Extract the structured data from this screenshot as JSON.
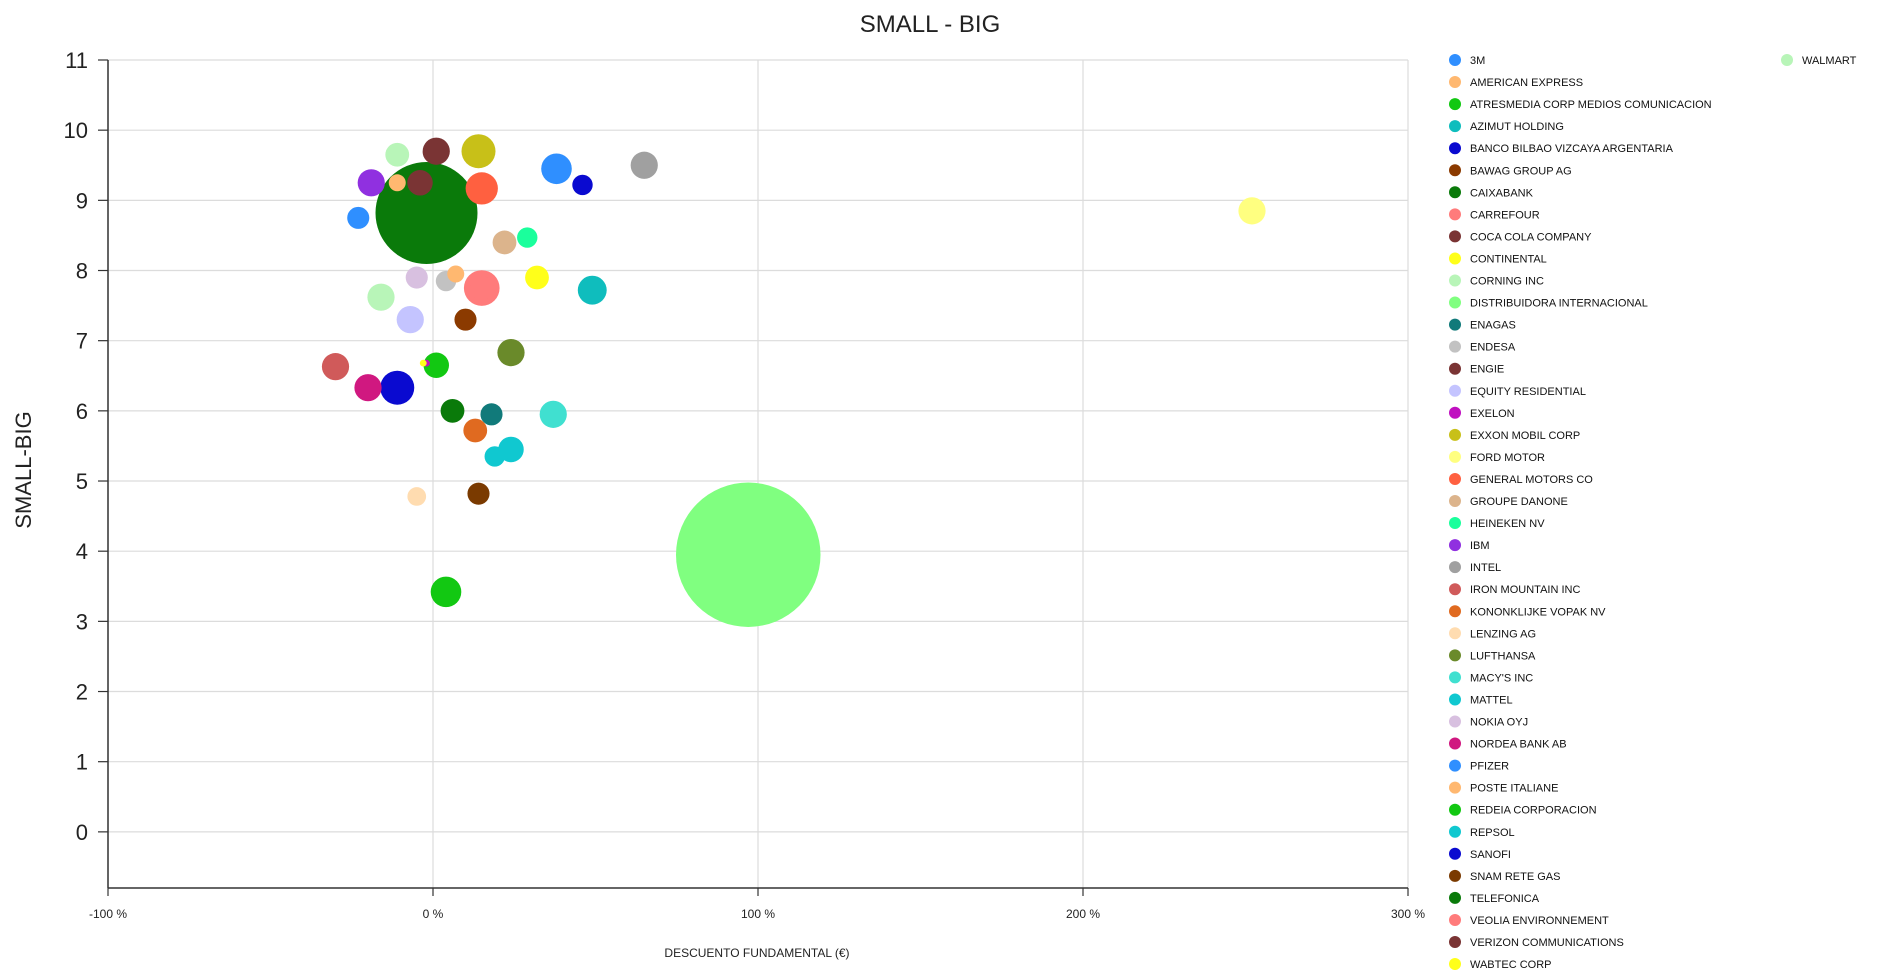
{
  "chart_data": {
    "type": "scatter",
    "subtype": "bubble",
    "title": "SMALL - BIG",
    "xlabel": "DESCUENTO FUNDAMENTAL (€)",
    "ylabel": "SMALL-BIG",
    "xlim": [
      -100,
      300
    ],
    "ylim": [
      -0.8,
      11
    ],
    "x_ticks": [
      -100,
      0,
      100,
      200,
      300
    ],
    "x_tick_labels": [
      "-100 %",
      "0 %",
      "100 %",
      "200 %",
      "300 %"
    ],
    "y_ticks": [
      0,
      1,
      2,
      3,
      4,
      5,
      6,
      7,
      8,
      9,
      10,
      11
    ],
    "y_tick_labels": [
      "0",
      "1",
      "2",
      "3",
      "4",
      "5",
      "6",
      "7",
      "8",
      "9",
      "10",
      "11"
    ],
    "grid": true,
    "legend_position": "right",
    "series": [
      {
        "name": "3M",
        "color": "#2f8fff",
        "x": -23,
        "y": 8.75,
        "size": 1.3
      },
      {
        "name": "AMERICAN EXPRESS",
        "color": "#ffb870",
        "x": -11,
        "y": 9.25,
        "size": 1.0
      },
      {
        "name": "ATRESMEDIA CORP MEDIOS COMUNICACION",
        "color": "#12c812",
        "x": 1,
        "y": 6.65,
        "size": 1.5
      },
      {
        "name": "AZIMUT HOLDING",
        "color": "#0fbdbd",
        "x": 49,
        "y": 7.72,
        "size": 1.7
      },
      {
        "name": "BANCO BILBAO VIZCAYA ARGENTARIA",
        "color": "#0a0ad0",
        "x": 46,
        "y": 9.22,
        "size": 1.2
      },
      {
        "name": "BAWAG GROUP AG",
        "color": "#8b3a00",
        "x": 10,
        "y": 7.3,
        "size": 1.3
      },
      {
        "name": "CAIXABANK",
        "color": "#0a7a0a",
        "x": -2,
        "y": 8.82,
        "size": 6.0
      },
      {
        "name": "CARREFOUR",
        "color": "#ff7b7b",
        "x": 15,
        "y": 7.75,
        "size": 2.1
      },
      {
        "name": "COCA COLA COMPANY",
        "color": "#7a3434",
        "x": 1,
        "y": 9.7,
        "size": 1.6
      },
      {
        "name": "CONTINENTAL",
        "color": "#ffff1a",
        "x": 32,
        "y": 7.9,
        "size": 1.4
      },
      {
        "name": "CORNING INC",
        "color": "#b8f5b8",
        "x": -11,
        "y": 9.65,
        "size": 1.4
      },
      {
        "name": "DISTRIBUIDORA INTERNACIONAL",
        "color": "#80ff80",
        "x": 97,
        "y": 3.95,
        "size": 8.5
      },
      {
        "name": "ENAGAS",
        "color": "#117a7a",
        "x": 18,
        "y": 5.95,
        "size": 1.3
      },
      {
        "name": "ENDESA",
        "color": "#c2c2c2",
        "x": 4,
        "y": 7.85,
        "size": 1.2
      },
      {
        "name": "ENGIE",
        "color": "#7a3434",
        "x": -4,
        "y": 9.25,
        "size": 1.5
      },
      {
        "name": "EQUITY RESIDENTIAL",
        "color": "#c4c4ff",
        "x": -7,
        "y": 7.3,
        "size": 1.6
      },
      {
        "name": "EXELON",
        "color": "#c010c0",
        "x": -2,
        "y": 6.68,
        "size": 0.4
      },
      {
        "name": "EXXON MOBIL CORP",
        "color": "#c8c018",
        "x": 14,
        "y": 9.7,
        "size": 2.0
      },
      {
        "name": "FORD MOTOR",
        "color": "#ffff80",
        "x": 252,
        "y": 8.85,
        "size": 1.6
      },
      {
        "name": "GENERAL MOTORS CO",
        "color": "#ff6040",
        "x": 15,
        "y": 9.17,
        "size": 1.9
      },
      {
        "name": "GROUPE DANONE",
        "color": "#dcb48c",
        "x": 22,
        "y": 8.4,
        "size": 1.4
      },
      {
        "name": "HEINEKEN NV",
        "color": "#1aff9c",
        "x": 29,
        "y": 8.47,
        "size": 1.2
      },
      {
        "name": "IBM",
        "color": "#9030e0",
        "x": -19,
        "y": 9.25,
        "size": 1.6
      },
      {
        "name": "INTEL",
        "color": "#a0a0a0",
        "x": 65,
        "y": 9.5,
        "size": 1.6
      },
      {
        "name": "IRON MOUNTAIN INC",
        "color": "#d05a5a",
        "x": -30,
        "y": 6.63,
        "size": 1.6
      },
      {
        "name": "KONONKLIJKE VOPAK NV",
        "color": "#e06a20",
        "x": 13,
        "y": 5.72,
        "size": 1.4
      },
      {
        "name": "LENZING AG",
        "color": "#ffdcb0",
        "x": -5,
        "y": 4.78,
        "size": 1.1
      },
      {
        "name": "LUFTHANSA",
        "color": "#6a8a2a",
        "x": 24,
        "y": 6.83,
        "size": 1.6
      },
      {
        "name": "MACY'S INC",
        "color": "#40e0d0",
        "x": 37,
        "y": 5.95,
        "size": 1.6
      },
      {
        "name": "MATTEL",
        "color": "#10c8d0",
        "x": 24,
        "y": 5.45,
        "size": 1.5
      },
      {
        "name": "NOKIA OYJ",
        "color": "#d8c0e0",
        "x": -5,
        "y": 7.9,
        "size": 1.3
      },
      {
        "name": "NORDEA BANK AB",
        "color": "#d01880",
        "x": -20,
        "y": 6.33,
        "size": 1.6
      },
      {
        "name": "PFIZER",
        "color": "#2f8fff",
        "x": 38,
        "y": 9.45,
        "size": 1.8
      },
      {
        "name": "POSTE ITALIANE",
        "color": "#ffb870",
        "x": 7,
        "y": 7.95,
        "size": 1.0
      },
      {
        "name": "REDEIA CORPORACION",
        "color": "#12c812",
        "x": 4,
        "y": 3.42,
        "size": 1.8
      },
      {
        "name": "REPSOL",
        "color": "#10c8d0",
        "x": 19,
        "y": 5.35,
        "size": 1.2
      },
      {
        "name": "SANOFI",
        "color": "#0a0ad0",
        "x": -11,
        "y": 6.33,
        "size": 2.0
      },
      {
        "name": "SNAM RETE GAS",
        "color": "#7a3a00",
        "x": 14,
        "y": 4.82,
        "size": 1.3
      },
      {
        "name": "TELEFONICA",
        "color": "#0a7a0a",
        "x": 6,
        "y": 6.0,
        "size": 1.4
      },
      {
        "name": "VEOLIA ENVIRONNEMENT",
        "color": "#ff7b7b",
        "x": 15,
        "y": 7.75,
        "size": 1.4
      },
      {
        "name": "VERIZON COMMUNICATIONS",
        "color": "#7a3434",
        "x": 0,
        "y": 9.68,
        "size": 1.2
      },
      {
        "name": "WABTEC CORP",
        "color": "#ffff1a",
        "x": -3,
        "y": 6.68,
        "size": 0.4
      },
      {
        "name": "WALMART",
        "color": "#b8f5b8",
        "x": -16,
        "y": 7.62,
        "size": 1.6
      }
    ]
  }
}
